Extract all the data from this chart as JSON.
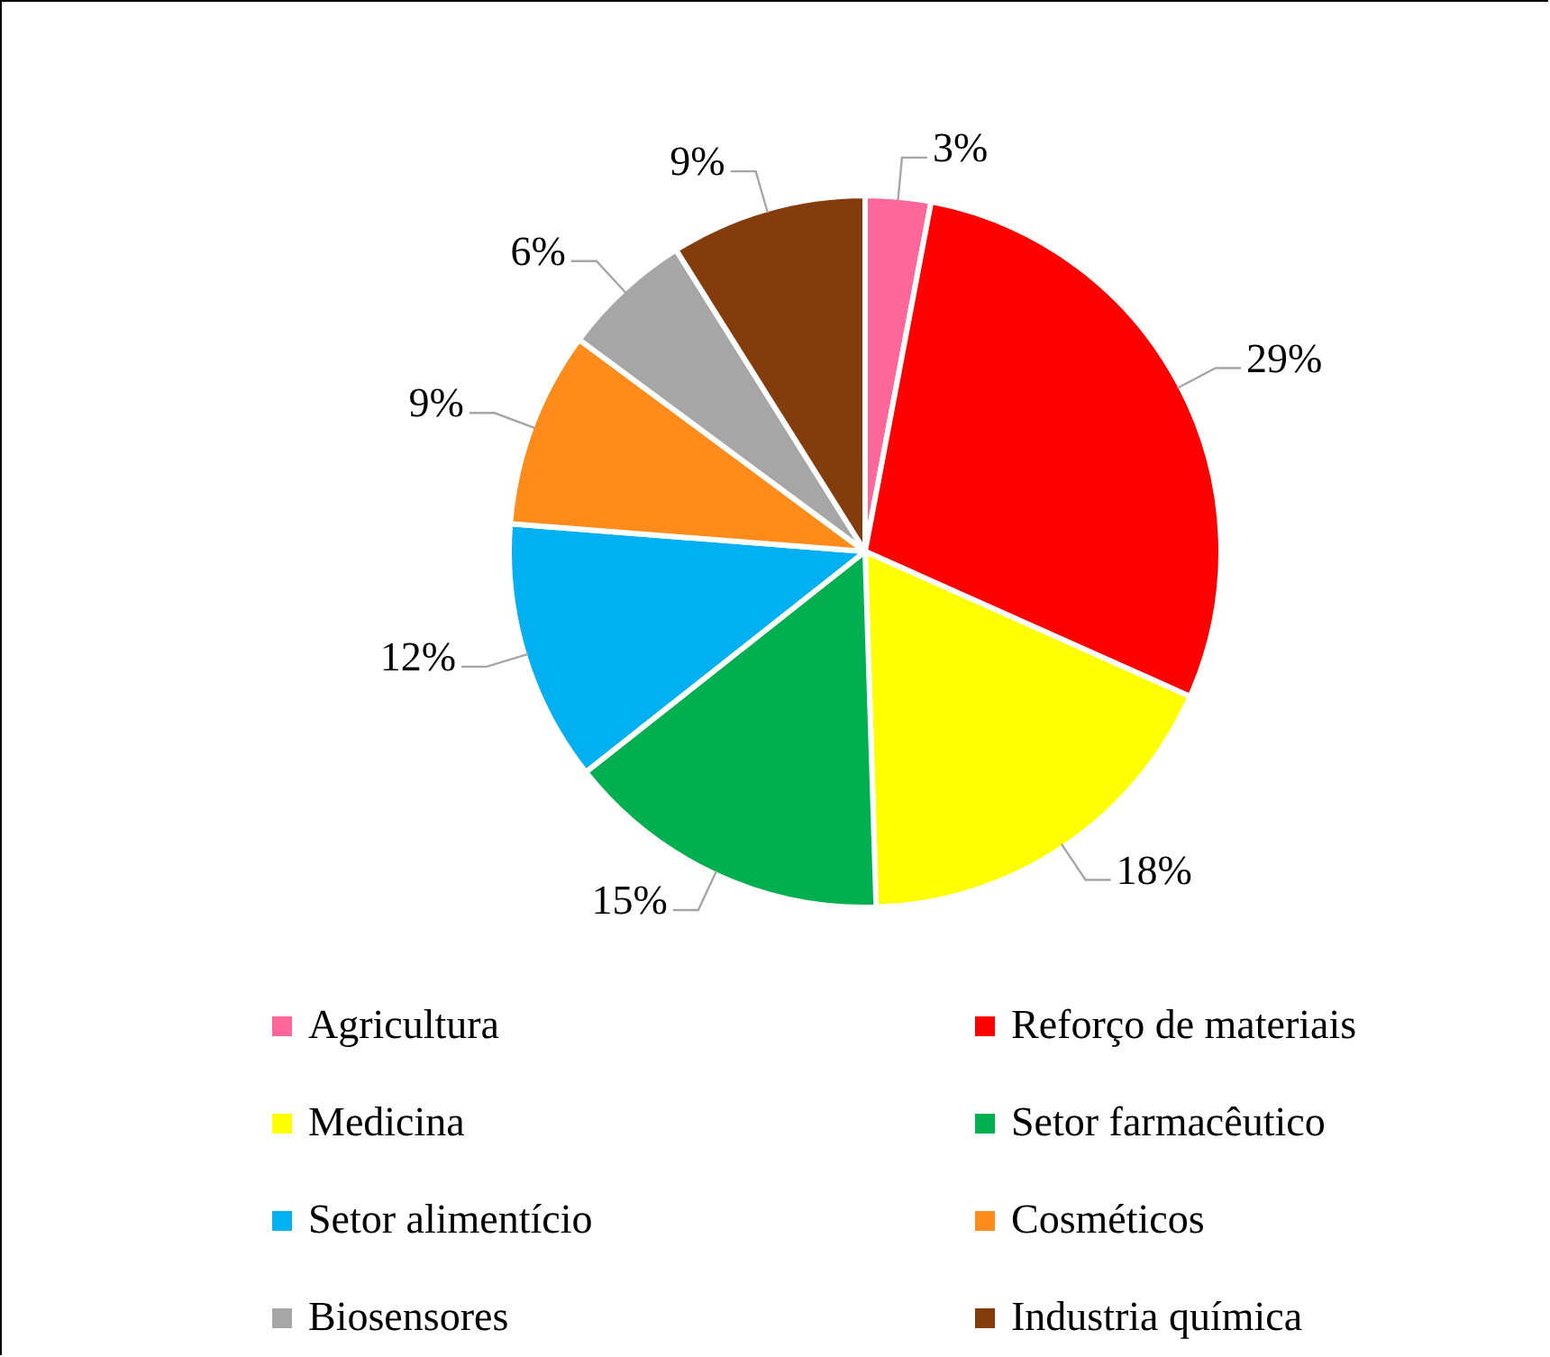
{
  "chart_data": {
    "type": "pie",
    "categories": [
      "Agricultura",
      "Reforço de materiais",
      "Medicina",
      "Setor farmacêutico",
      "Setor alimentício",
      "Cosméticos",
      "Biosensores",
      "Industria química"
    ],
    "values": [
      3,
      29,
      18,
      15,
      12,
      9,
      6,
      9
    ],
    "value_labels": [
      "3%",
      "29%",
      "18%",
      "15%",
      "12%",
      "9%",
      "6%",
      "9%"
    ],
    "colors": [
      "#ff6699",
      "#ff0000",
      "#ffff00",
      "#00b050",
      "#00b0f0",
      "#ff8c1a",
      "#a6a6a6",
      "#843c0c"
    ],
    "legend": "bottom"
  }
}
